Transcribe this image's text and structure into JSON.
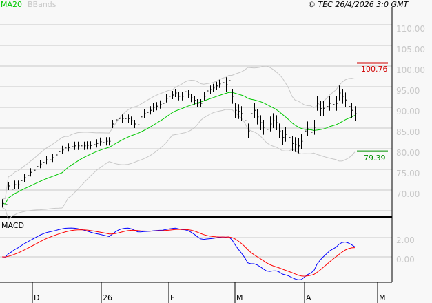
{
  "legend": {
    "ma_label": "MA20",
    "bb_label": "BBands",
    "ma_color": "#00c800",
    "bb_color": "#c8c8c8"
  },
  "copyright": "© TEC 26/4/2026 3:0 GMT",
  "macd_label": "MACD",
  "resistance": {
    "value": 100.76,
    "label": "100.76",
    "color": "#d00000"
  },
  "support": {
    "value": 79.39,
    "label": "79.39",
    "color": "#009000"
  },
  "chart_data": [
    {
      "type": "line",
      "panel": "price",
      "ylim": [
        65,
        112
      ],
      "y_ticks": [
        "110.00",
        "105.00",
        "100.00",
        "95.00",
        "90.00",
        "85.00",
        "80.00",
        "75.00",
        "70.00"
      ],
      "y_tick_values": [
        110,
        105,
        100,
        95,
        90,
        85,
        80,
        75,
        70
      ],
      "x_ticks": [
        "D",
        "26",
        "F",
        "M",
        "A",
        "M"
      ],
      "grid": true,
      "series": [
        {
          "name": "MA20"
        },
        {
          "name": "BBands"
        }
      ],
      "close": [
        66.8,
        66.5,
        71.0,
        70.2,
        71.3,
        71.3,
        72.3,
        73.0,
        73.5,
        74.3,
        74.8,
        75.7,
        76.3,
        76.7,
        77.3,
        77.3,
        77.8,
        78.5,
        79.3,
        79.7,
        80.2,
        80.3,
        80.5,
        80.7,
        80.7,
        80.7,
        80.7,
        80.8,
        80.8,
        81.0,
        81.3,
        81.7,
        81.5,
        81.8,
        81.8,
        86.0,
        87.0,
        87.3,
        87.3,
        87.3,
        87.3,
        86.8,
        86.0,
        85.8,
        87.7,
        88.5,
        88.8,
        89.3,
        90.0,
        90.3,
        90.7,
        91.0,
        92.2,
        92.7,
        93.0,
        93.5,
        92.7,
        92.7,
        93.8,
        93.2,
        92.3,
        91.7,
        91.0,
        91.0,
        92.7,
        94.0,
        94.3,
        94.7,
        95.2,
        95.7,
        96.0,
        95.5,
        96.5,
        92.7,
        89.3,
        89.0,
        88.5,
        86.8,
        84.3,
        88.5,
        89.3,
        87.7,
        86.3,
        85.2,
        84.7,
        86.0,
        86.8,
        86.3,
        84.3,
        82.7,
        83.5,
        82.7,
        81.3,
        81.0,
        80.7,
        81.8,
        84.3,
        84.8,
        84.0,
        85.2,
        91.0,
        89.7,
        89.8,
        90.2,
        91.0,
        90.7,
        91.0,
        93.5,
        92.7,
        91.8,
        90.2,
        89.3,
        88.5
      ]
    },
    {
      "type": "line",
      "panel": "macd",
      "y_ticks": [
        "2.00",
        "0.00"
      ],
      "y_tick_values": [
        2,
        0
      ],
      "series": [
        {
          "name": "MACD",
          "color": "#0000ff"
        },
        {
          "name": "signal",
          "color": "#ff0000"
        }
      ]
    }
  ]
}
